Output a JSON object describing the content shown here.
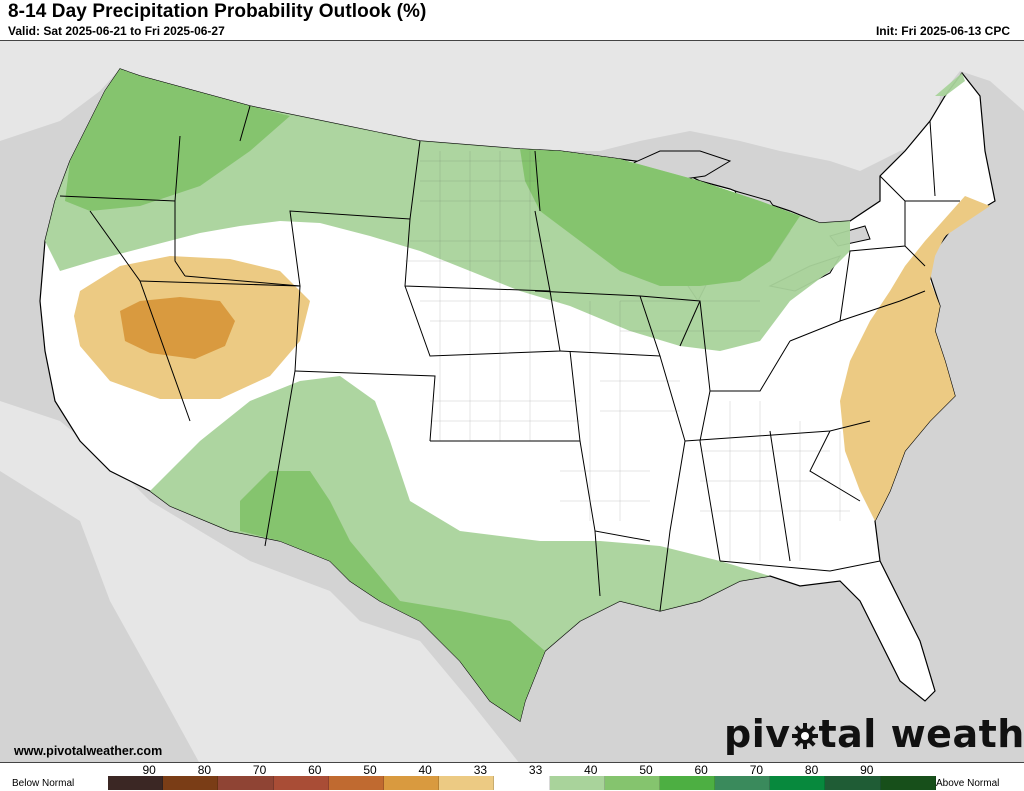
{
  "header": {
    "title": "8-14 Day Precipitation Probability Outlook (%)",
    "valid": "Valid: Sat 2025-06-21 to Fri 2025-06-27",
    "init": "Init: Fri 2025-06-13 CPC"
  },
  "footer": {
    "website": "www.pivotalweather.com",
    "logo_left": "piv",
    "logo_right": "tal weather"
  },
  "legend": {
    "below_label": "Below Normal",
    "above_label": "Above Normal",
    "ticks": [
      "90",
      "80",
      "70",
      "60",
      "50",
      "40",
      "33",
      "33",
      "40",
      "50",
      "60",
      "70",
      "80",
      "90"
    ],
    "colors": [
      "#3b2724",
      "#7a3d16",
      "#8f4434",
      "#a94d36",
      "#c06a30",
      "#d99a3f",
      "#ecca83",
      "#ffffff",
      "#a9d39b",
      "#85c46e",
      "#4daf42",
      "#3a8a5c",
      "#07893d",
      "#1f5c35",
      "#174f1a"
    ]
  },
  "map": {
    "land_color": "#ffffff",
    "water_color": "#d3d3d3",
    "categories": [
      {
        "label": "Above 33",
        "color": "#a9d39b"
      },
      {
        "label": "Above 40",
        "color": "#85c46e"
      },
      {
        "label": "Below 33",
        "color": "#ecca83"
      },
      {
        "label": "Below 40",
        "color": "#d99a3f"
      }
    ]
  }
}
